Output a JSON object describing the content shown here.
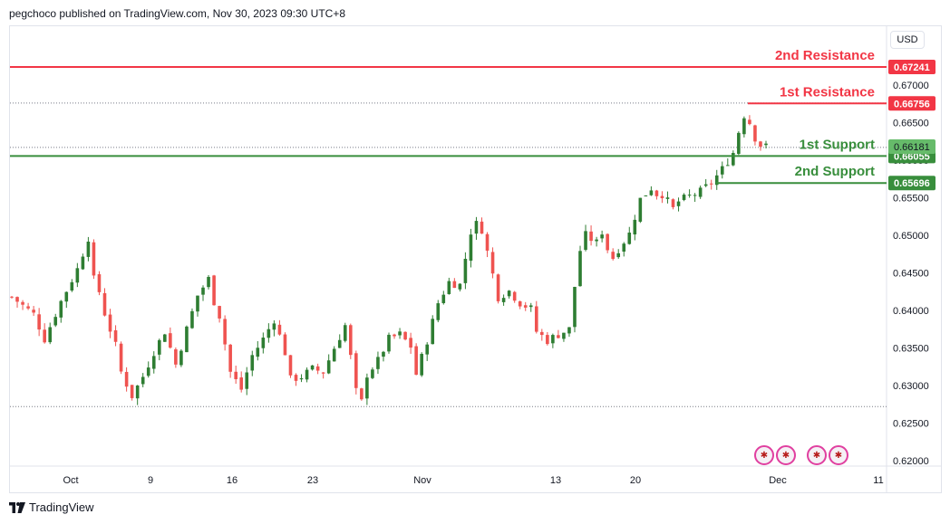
{
  "header": {
    "text": "pegchoco published on TradingView.com, Nov 30, 2023 09:30 UTC+8"
  },
  "currency_button": {
    "label": "USD"
  },
  "brand": {
    "name": "TradingView"
  },
  "flags": [
    {
      "name": "us-flag-icon"
    },
    {
      "name": "us-flag-icon"
    },
    {
      "name": "au-flag-icon"
    },
    {
      "name": "us-flag-icon"
    }
  ],
  "colors": {
    "up": "#26a69a",
    "up_body": "#2e7d32",
    "down": "#ef5350",
    "resistance": "#f23645",
    "support": "#388e3c",
    "price": "#43a047",
    "grid": "#787b86"
  },
  "chart_data": {
    "type": "candlestick",
    "title": "",
    "ylim": [
      0.6195,
      0.6745
    ],
    "y_ticks": [
      "0.67000",
      "0.66500",
      "0.66000",
      "0.65500",
      "0.65000",
      "0.64500",
      "0.64000",
      "0.63500",
      "0.63000",
      "0.62500",
      "0.62000"
    ],
    "x_ticks": [
      "Oct",
      "9",
      "16",
      "23",
      "Nov",
      "13",
      "20",
      "Dec",
      "11"
    ],
    "levels": [
      {
        "label": "2nd Resistance",
        "value": 0.67241,
        "value_text": "0.67241",
        "kind": "resistance"
      },
      {
        "label": "1st Resistance",
        "value": 0.66756,
        "value_text": "0.66756",
        "kind": "resistance"
      },
      {
        "label": "1st Support",
        "value": 0.66055,
        "value_text": "0.66055",
        "kind": "support"
      },
      {
        "label": "2nd Support",
        "value": 0.65696,
        "value_text": "0.65696",
        "kind": "support"
      }
    ],
    "current_price": {
      "value": 0.66181,
      "value_text": "0.66181"
    },
    "dotted_lines": [
      0.6676,
      0.6617,
      0.6272
    ],
    "price_path": [
      [
        0,
        0.6418
      ],
      [
        4,
        0.6395
      ],
      [
        6,
        0.6362
      ],
      [
        9,
        0.6412
      ],
      [
        12,
        0.6455
      ],
      [
        14,
        0.6497
      ],
      [
        15,
        0.6441
      ],
      [
        16,
        0.6425
      ],
      [
        17,
        0.6396
      ],
      [
        19,
        0.6353
      ],
      [
        20,
        0.6318
      ],
      [
        22,
        0.6286
      ],
      [
        24,
        0.6312
      ],
      [
        26,
        0.6345
      ],
      [
        28,
        0.6372
      ],
      [
        30,
        0.6328
      ],
      [
        32,
        0.6375
      ],
      [
        34,
        0.642
      ],
      [
        36,
        0.6442
      ],
      [
        37,
        0.6412
      ],
      [
        38,
        0.6393
      ],
      [
        40,
        0.6318
      ],
      [
        42,
        0.6295
      ],
      [
        44,
        0.634
      ],
      [
        46,
        0.6362
      ],
      [
        48,
        0.6388
      ],
      [
        50,
        0.6344
      ],
      [
        51,
        0.6308
      ],
      [
        53,
        0.6312
      ],
      [
        55,
        0.6322
      ],
      [
        57,
        0.6318
      ],
      [
        59,
        0.635
      ],
      [
        61,
        0.638
      ],
      [
        62,
        0.6338
      ],
      [
        63,
        0.6292
      ],
      [
        64,
        0.6278
      ],
      [
        65,
        0.6315
      ],
      [
        67,
        0.6333
      ],
      [
        69,
        0.6362
      ],
      [
        71,
        0.6368
      ],
      [
        73,
        0.6352
      ],
      [
        74,
        0.6315
      ],
      [
        76,
        0.636
      ],
      [
        78,
        0.641
      ],
      [
        80,
        0.6438
      ],
      [
        82,
        0.6434
      ],
      [
        84,
        0.6505
      ],
      [
        85,
        0.6515
      ],
      [
        86,
        0.6508
      ],
      [
        88,
        0.6448
      ],
      [
        89,
        0.6418
      ],
      [
        91,
        0.6426
      ],
      [
        93,
        0.641
      ],
      [
        95,
        0.6402
      ],
      [
        96,
        0.6372
      ],
      [
        98,
        0.636
      ],
      [
        100,
        0.6368
      ],
      [
        102,
        0.6375
      ],
      [
        103,
        0.6432
      ],
      [
        104,
        0.648
      ],
      [
        105,
        0.65
      ],
      [
        107,
        0.649
      ],
      [
        108,
        0.6505
      ],
      [
        109,
        0.6482
      ],
      [
        110,
        0.647
      ],
      [
        111,
        0.6482
      ],
      [
        113,
        0.6502
      ],
      [
        115,
        0.6548
      ],
      [
        117,
        0.6563
      ],
      [
        118,
        0.6555
      ],
      [
        119,
        0.6555
      ],
      [
        121,
        0.6535
      ],
      [
        122,
        0.6545
      ],
      [
        124,
        0.6552
      ],
      [
        126,
        0.6558
      ],
      [
        128,
        0.657
      ],
      [
        130,
        0.6588
      ],
      [
        132,
        0.661
      ],
      [
        133,
        0.6638
      ],
      [
        134,
        0.666
      ],
      [
        135,
        0.665
      ],
      [
        136,
        0.663
      ],
      [
        137,
        0.662
      ],
      [
        138,
        0.6618
      ]
    ]
  }
}
